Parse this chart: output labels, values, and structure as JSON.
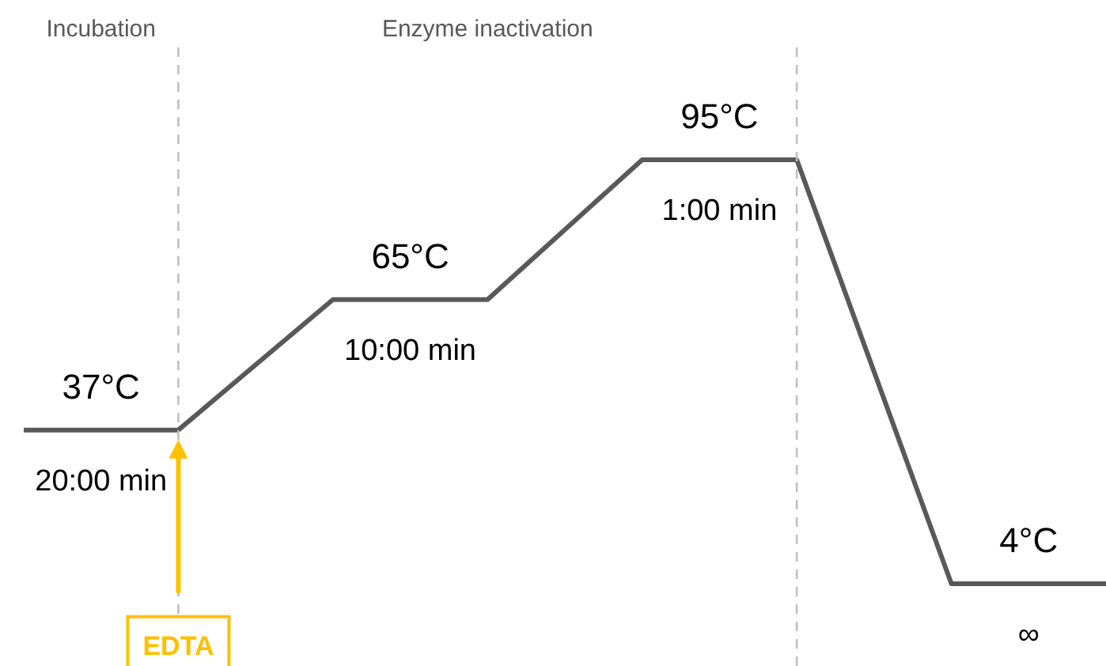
{
  "chart_data": {
    "type": "line",
    "categories": [
      null,
      null,
      null,
      null,
      null,
      null,
      null,
      null
    ],
    "tick_labels": false,
    "marker": "none",
    "line_style": "solid",
    "series": [
      {
        "color": "#595959",
        "values": [
          37,
          37,
          65,
          65,
          95,
          95,
          4,
          4
        ],
        "value_labels": [
          "37°C",
          null,
          "65°C",
          null,
          "95°C",
          null,
          "4°C",
          null
        ]
      }
    ],
    "annotations": [
      "Incubation",
      "Enzyme inactivation",
      "20:00 min",
      "10:00 min",
      "1:00 min",
      "∞",
      "EDTA"
    ]
  }
}
